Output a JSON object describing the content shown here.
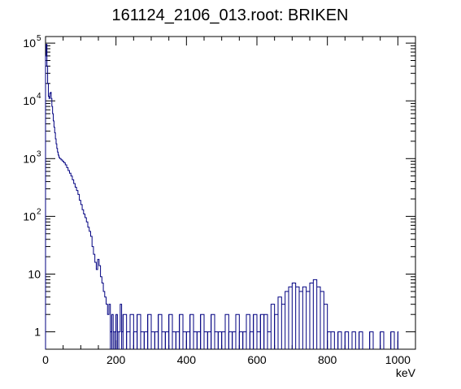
{
  "chart_data": {
    "type": "line",
    "style": "step histogram",
    "title": "161124_2106_013.root: BRIKEN",
    "xlabel": "keV",
    "ylabel": "",
    "xlim": [
      0,
      1050
    ],
    "ylim": [
      0.5,
      130000
    ],
    "yscale": "log",
    "grid": false,
    "legend": "none",
    "x_ticks": [
      0,
      200,
      400,
      600,
      800,
      1000
    ],
    "x_tick_labels": [
      "0",
      "200",
      "400",
      "600",
      "800",
      "1000"
    ],
    "y_ticks": [
      1,
      10,
      100,
      1000,
      10000,
      100000
    ],
    "line_color": "#000080",
    "series": [
      {
        "bin_width": 2,
        "points": [
          [
            0,
            60000
          ],
          [
            2,
            95000
          ],
          [
            4,
            40000
          ],
          [
            6,
            20000
          ],
          [
            8,
            12000
          ],
          [
            10,
            11000
          ],
          [
            12,
            13500
          ],
          [
            14,
            14000
          ],
          [
            16,
            11000
          ],
          [
            18,
            8000
          ],
          [
            20,
            6000
          ],
          [
            22,
            4500
          ],
          [
            24,
            3500
          ],
          [
            26,
            2800
          ],
          [
            28,
            2200
          ],
          [
            30,
            1800
          ],
          [
            32,
            1500
          ],
          [
            34,
            1300
          ],
          [
            36,
            1150
          ],
          [
            38,
            1050
          ],
          [
            40,
            1000
          ],
          [
            44,
            950
          ],
          [
            48,
            900
          ],
          [
            52,
            850
          ],
          [
            56,
            780
          ],
          [
            60,
            700
          ],
          [
            64,
            620
          ],
          [
            68,
            560
          ],
          [
            72,
            500
          ],
          [
            76,
            430
          ],
          [
            80,
            370
          ],
          [
            84,
            320
          ],
          [
            88,
            280
          ],
          [
            92,
            240
          ],
          [
            96,
            190
          ],
          [
            100,
            160
          ],
          [
            104,
            130
          ],
          [
            108,
            110
          ],
          [
            112,
            95
          ],
          [
            116,
            80
          ],
          [
            120,
            65
          ],
          [
            124,
            55
          ],
          [
            128,
            45
          ],
          [
            132,
            30
          ],
          [
            136,
            22
          ],
          [
            140,
            16
          ],
          [
            144,
            12
          ],
          [
            148,
            18
          ],
          [
            152,
            14
          ],
          [
            156,
            9
          ],
          [
            160,
            7
          ],
          [
            164,
            5
          ],
          [
            168,
            4
          ],
          [
            172,
            3
          ],
          [
            176,
            2
          ],
          [
            180,
            3
          ],
          [
            184,
            1
          ],
          [
            188,
            2
          ],
          [
            192,
            1
          ],
          [
            196,
            1
          ],
          [
            200,
            2
          ],
          [
            204,
            1
          ],
          [
            208,
            1
          ],
          [
            212,
            3
          ],
          [
            216,
            1
          ],
          [
            220,
            2
          ],
          [
            230,
            1
          ],
          [
            240,
            2
          ],
          [
            250,
            1
          ],
          [
            260,
            2
          ],
          [
            270,
            1
          ],
          [
            280,
            1
          ],
          [
            290,
            2
          ],
          [
            300,
            1
          ],
          [
            310,
            1
          ],
          [
            320,
            2
          ],
          [
            330,
            1
          ],
          [
            340,
            1
          ],
          [
            350,
            2
          ],
          [
            360,
            1
          ],
          [
            370,
            1
          ],
          [
            380,
            2
          ],
          [
            390,
            1
          ],
          [
            400,
            1
          ],
          [
            410,
            2
          ],
          [
            420,
            1
          ],
          [
            430,
            1
          ],
          [
            440,
            2
          ],
          [
            450,
            1
          ],
          [
            460,
            1
          ],
          [
            470,
            2
          ],
          [
            480,
            1
          ],
          [
            490,
            1
          ],
          [
            500,
            1
          ],
          [
            510,
            2
          ],
          [
            520,
            1
          ],
          [
            530,
            1
          ],
          [
            540,
            2
          ],
          [
            550,
            1
          ],
          [
            560,
            1
          ],
          [
            570,
            2
          ],
          [
            580,
            1
          ],
          [
            590,
            2
          ],
          [
            600,
            1
          ],
          [
            610,
            2
          ],
          [
            620,
            2
          ],
          [
            630,
            1
          ],
          [
            640,
            3
          ],
          [
            650,
            2
          ],
          [
            660,
            4
          ],
          [
            670,
            3
          ],
          [
            680,
            5
          ],
          [
            690,
            6
          ],
          [
            700,
            7
          ],
          [
            710,
            6
          ],
          [
            720,
            5
          ],
          [
            730,
            6
          ],
          [
            740,
            5
          ],
          [
            750,
            7
          ],
          [
            760,
            8
          ],
          [
            770,
            6
          ],
          [
            780,
            5
          ],
          [
            790,
            3
          ],
          [
            800,
            1
          ],
          [
            810,
            1
          ],
          [
            830,
            1
          ],
          [
            850,
            1
          ],
          [
            870,
            1
          ],
          [
            890,
            1
          ],
          [
            920,
            1
          ],
          [
            950,
            1
          ],
          [
            980,
            1
          ],
          [
            1000,
            1
          ]
        ]
      }
    ]
  }
}
